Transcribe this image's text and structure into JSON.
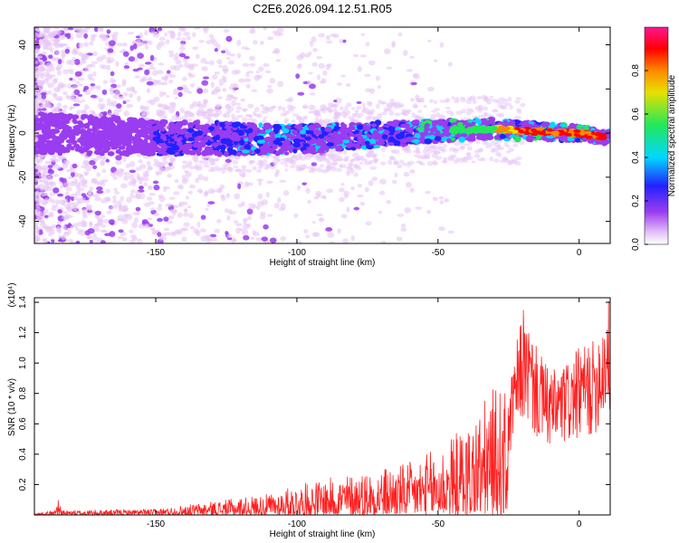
{
  "figure_title": "C2E6.2026.094.12.51.R05",
  "chart_data": [
    {
      "type": "heatmap",
      "title": "C2E6.2026.094.12.51.R05",
      "xlabel": "Height of straight line (km)",
      "ylabel": "Frequency (Hz)",
      "xlim": [
        -193,
        11
      ],
      "ylim": [
        -50,
        48
      ],
      "x_ticks": [
        -150,
        -100,
        -50,
        0
      ],
      "y_ticks": [
        -40,
        -20,
        0,
        20,
        40
      ],
      "colorbar": {
        "label": "Normalized spectral amplitude",
        "range": [
          0,
          1
        ],
        "ticks": [
          "0.0",
          "0.2",
          "0.4",
          "0.6",
          "0.8"
        ],
        "colors": [
          "#ffffff",
          "#e7c7f7",
          "#9a3cf0",
          "#2222ff",
          "#00d8ff",
          "#22e85a",
          "#e8e000",
          "#ff8800",
          "#ff0000",
          "#ff1493"
        ]
      },
      "track": [
        {
          "x": -190,
          "f": 0
        },
        {
          "x": -150,
          "f": -2
        },
        {
          "x": -100,
          "f": -3
        },
        {
          "x": -75,
          "f": -1
        },
        {
          "x": -50,
          "f": 1
        },
        {
          "x": -30,
          "f": 2
        },
        {
          "x": -20,
          "f": 1
        },
        {
          "x": 0,
          "f": 0
        },
        {
          "x": 10,
          "f": -2
        }
      ]
    },
    {
      "type": "line",
      "xlabel": "Height of straight line (km)",
      "ylabel": "SNR (10 * v/v)",
      "y_multiplier": "(x10⁴)",
      "xlim": [
        -193,
        11
      ],
      "ylim": [
        0,
        1.43
      ],
      "x_ticks": [
        -150,
        -100,
        -50,
        0
      ],
      "y_ticks": [
        "0.2",
        "0.4",
        "0.6",
        "0.8",
        "1.0",
        "1.2",
        "1.4"
      ],
      "line_color": "#ff2020",
      "envelope": [
        {
          "x": -193,
          "v": 0.01
        },
        {
          "x": -186,
          "v": 0.03
        },
        {
          "x": -185,
          "v": 0.12
        },
        {
          "x": -183,
          "v": 0.03
        },
        {
          "x": -150,
          "v": 0.04
        },
        {
          "x": -130,
          "v": 0.09
        },
        {
          "x": -110,
          "v": 0.14
        },
        {
          "x": -100,
          "v": 0.2
        },
        {
          "x": -80,
          "v": 0.28
        },
        {
          "x": -60,
          "v": 0.35
        },
        {
          "x": -50,
          "v": 0.45
        },
        {
          "x": -40,
          "v": 0.6
        },
        {
          "x": -30,
          "v": 0.85
        },
        {
          "x": -25,
          "v": 0.8
        },
        {
          "x": -20,
          "v": 1.38
        },
        {
          "x": -15,
          "v": 1.1
        },
        {
          "x": -10,
          "v": 0.95
        },
        {
          "x": -5,
          "v": 1.0
        },
        {
          "x": 0,
          "v": 1.1
        },
        {
          "x": 5,
          "v": 1.15
        },
        {
          "x": 10,
          "v": 1.43
        }
      ]
    }
  ]
}
